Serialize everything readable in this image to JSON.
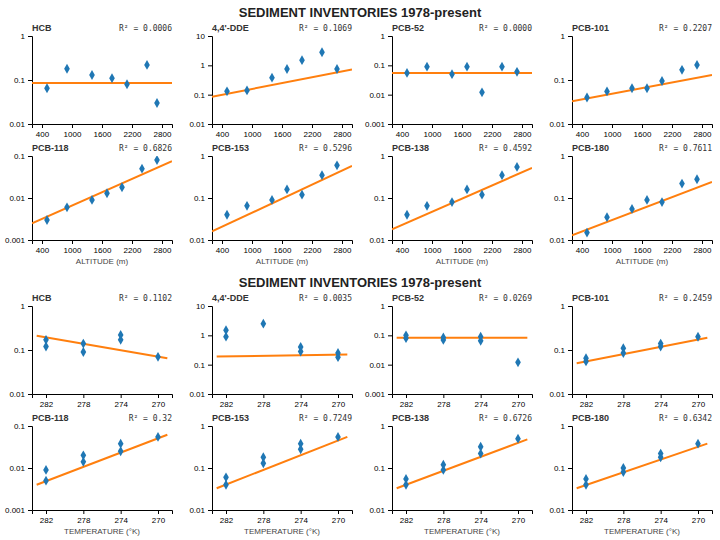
{
  "title": "SEDIMENT INVENTORIES 1978-present",
  "chart_data": [
    {
      "type": "scatter",
      "title": "HCB",
      "annotations": [
        "R² = 0.0006"
      ],
      "log": "y",
      "xlim": [
        200,
        3000
      ],
      "xticks": [
        400,
        1000,
        1600,
        2200,
        2800
      ],
      "ylim": [
        0.01,
        1
      ],
      "yticks": [
        0.01,
        0.1,
        1
      ],
      "series": [
        {
          "type": "scatter",
          "marker": "diamond",
          "x": [
            500,
            900,
            1400,
            1800,
            2100,
            2500,
            2700
          ],
          "values": [
            0.065,
            0.18,
            0.13,
            0.11,
            0.08,
            0.22,
            0.03
          ]
        },
        {
          "type": "line",
          "x": [
            200,
            3000
          ],
          "values": [
            0.085,
            0.085
          ]
        }
      ]
    },
    {
      "type": "scatter",
      "title": "4,4'-DDE",
      "annotations": [
        "R² = 0.1069"
      ],
      "log": "y",
      "xlim": [
        200,
        3000
      ],
      "xticks": [
        400,
        1000,
        1600,
        2200,
        2800
      ],
      "ylim": [
        0.01,
        10
      ],
      "yticks": [
        0.01,
        0.1,
        1,
        10
      ],
      "series": [
        {
          "type": "scatter",
          "marker": "diamond",
          "x": [
            500,
            900,
            1400,
            1700,
            2000,
            2400,
            2700
          ],
          "values": [
            0.13,
            0.14,
            0.38,
            0.75,
            1.5,
            2.8,
            0.75
          ]
        },
        {
          "type": "line",
          "x": [
            200,
            3000
          ],
          "values": [
            0.085,
            0.72
          ]
        }
      ]
    },
    {
      "type": "scatter",
      "title": "PCB-52",
      "annotations": [
        "R² = 0.0000"
      ],
      "log": "y",
      "xlim": [
        200,
        3000
      ],
      "xticks": [
        400,
        1000,
        1600,
        2200,
        2800
      ],
      "ylim": [
        0.001,
        1
      ],
      "yticks": [
        0.001,
        0.01,
        0.1,
        1
      ],
      "series": [
        {
          "type": "scatter",
          "marker": "diamond",
          "x": [
            500,
            900,
            1400,
            1700,
            2000,
            2400,
            2700
          ],
          "values": [
            0.055,
            0.09,
            0.05,
            0.09,
            0.012,
            0.09,
            0.06
          ]
        },
        {
          "type": "line",
          "x": [
            200,
            3000
          ],
          "values": [
            0.055,
            0.055
          ]
        }
      ]
    },
    {
      "type": "scatter",
      "title": "PCB-101",
      "annotations": [
        "R² = 0.2207"
      ],
      "log": "y",
      "xlim": [
        200,
        3000
      ],
      "xticks": [
        400,
        1000,
        1600,
        2200,
        2800
      ],
      "ylim": [
        0.01,
        1
      ],
      "yticks": [
        0.01,
        0.1,
        1
      ],
      "series": [
        {
          "type": "scatter",
          "marker": "diamond",
          "x": [
            500,
            900,
            1400,
            1700,
            2000,
            2400,
            2700
          ],
          "values": [
            0.04,
            0.055,
            0.065,
            0.065,
            0.095,
            0.17,
            0.22
          ]
        },
        {
          "type": "line",
          "x": [
            200,
            3000
          ],
          "values": [
            0.033,
            0.13
          ]
        }
      ]
    },
    {
      "type": "scatter",
      "title": "PCB-118",
      "annotations": [
        "R² = 0.6826"
      ],
      "log": "y",
      "x_label": "ALTITUDE (m)",
      "xlim": [
        200,
        3000
      ],
      "xticks": [
        400,
        1000,
        1600,
        2200,
        2800
      ],
      "ylim": [
        0.001,
        0.1
      ],
      "yticks": [
        0.001,
        0.01,
        0.1
      ],
      "series": [
        {
          "type": "scatter",
          "marker": "diamond",
          "x": [
            500,
            900,
            1400,
            1700,
            2000,
            2400,
            2700
          ],
          "values": [
            0.003,
            0.006,
            0.009,
            0.013,
            0.018,
            0.05,
            0.08
          ]
        },
        {
          "type": "line",
          "x": [
            200,
            3000
          ],
          "values": [
            0.0025,
            0.075
          ]
        }
      ]
    },
    {
      "type": "scatter",
      "title": "PCB-153",
      "annotations": [
        "R² = 0.5296"
      ],
      "log": "y",
      "x_label": "ALTITUDE (m)",
      "xlim": [
        200,
        3000
      ],
      "xticks": [
        400,
        1000,
        1600,
        2200,
        2800
      ],
      "ylim": [
        0.01,
        1
      ],
      "yticks": [
        0.01,
        0.1,
        1
      ],
      "series": [
        {
          "type": "scatter",
          "marker": "diamond",
          "x": [
            500,
            900,
            1400,
            1700,
            2000,
            2400,
            2700
          ],
          "values": [
            0.04,
            0.065,
            0.09,
            0.16,
            0.12,
            0.35,
            0.6
          ]
        },
        {
          "type": "line",
          "x": [
            200,
            3000
          ],
          "values": [
            0.016,
            0.58
          ]
        }
      ]
    },
    {
      "type": "scatter",
      "title": "PCB-138",
      "annotations": [
        "R² = 0.4592"
      ],
      "log": "y",
      "x_label": "ALTITUDE (m)",
      "xlim": [
        200,
        3000
      ],
      "xticks": [
        400,
        1000,
        1600,
        2200,
        2800
      ],
      "ylim": [
        0.01,
        1
      ],
      "yticks": [
        0.01,
        0.1,
        1
      ],
      "series": [
        {
          "type": "scatter",
          "marker": "diamond",
          "x": [
            500,
            900,
            1400,
            1700,
            2000,
            2400,
            2700
          ],
          "values": [
            0.04,
            0.065,
            0.08,
            0.16,
            0.12,
            0.35,
            0.55
          ]
        },
        {
          "type": "line",
          "x": [
            200,
            3000
          ],
          "values": [
            0.018,
            0.52
          ]
        }
      ]
    },
    {
      "type": "scatter",
      "title": "PCB-180",
      "annotations": [
        "R² = 0.7611"
      ],
      "log": "y",
      "x_label": "ALTITUDE (m)",
      "xlim": [
        200,
        3000
      ],
      "xticks": [
        400,
        1000,
        1600,
        2200,
        2800
      ],
      "ylim": [
        0.01,
        1
      ],
      "yticks": [
        0.01,
        0.1,
        1
      ],
      "series": [
        {
          "type": "scatter",
          "marker": "diamond",
          "x": [
            500,
            900,
            1400,
            1700,
            2000,
            2400,
            2700
          ],
          "values": [
            0.015,
            0.035,
            0.055,
            0.09,
            0.08,
            0.22,
            0.28
          ]
        },
        {
          "type": "line",
          "x": [
            200,
            3000
          ],
          "values": [
            0.013,
            0.24
          ]
        }
      ]
    },
    {
      "type": "scatter",
      "title": "HCB",
      "annotations": [
        "R² = 0.1102"
      ],
      "log": "y",
      "xlim": [
        283.5,
        268.5
      ],
      "xticks": [
        282,
        278,
        274,
        270
      ],
      "ylim": [
        0.01,
        1
      ],
      "yticks": [
        0.01,
        0.1,
        1
      ],
      "series": [
        {
          "type": "scatter",
          "marker": "diamond",
          "x": [
            282,
            282,
            278,
            278,
            274,
            274,
            270
          ],
          "values": [
            0.12,
            0.17,
            0.14,
            0.09,
            0.22,
            0.17,
            0.07
          ]
        },
        {
          "type": "line",
          "x": [
            283,
            269
          ],
          "values": [
            0.21,
            0.065
          ]
        }
      ]
    },
    {
      "type": "scatter",
      "title": "4,4'-DDE",
      "annotations": [
        "R² = 0.0035"
      ],
      "log": "y",
      "xlim": [
        283.5,
        268.5
      ],
      "xticks": [
        282,
        278,
        274,
        270
      ],
      "ylim": [
        0.01,
        10
      ],
      "yticks": [
        0.01,
        0.1,
        1,
        10
      ],
      "series": [
        {
          "type": "scatter",
          "marker": "diamond",
          "x": [
            282,
            282,
            278,
            274,
            274,
            270,
            270
          ],
          "values": [
            0.9,
            1.5,
            2.5,
            0.28,
            0.4,
            0.18,
            0.25
          ]
        },
        {
          "type": "line",
          "x": [
            283,
            269
          ],
          "values": [
            0.19,
            0.22
          ]
        }
      ]
    },
    {
      "type": "scatter",
      "title": "PCB-52",
      "annotations": [
        "R² = 0.0269"
      ],
      "log": "y",
      "xlim": [
        283.5,
        268.5
      ],
      "xticks": [
        282,
        278,
        274,
        270
      ],
      "ylim": [
        0.001,
        1
      ],
      "yticks": [
        0.001,
        0.01,
        0.1,
        1
      ],
      "series": [
        {
          "type": "scatter",
          "marker": "diamond",
          "x": [
            282,
            282,
            278,
            278,
            274,
            274,
            270
          ],
          "values": [
            0.08,
            0.1,
            0.07,
            0.085,
            0.065,
            0.09,
            0.012
          ]
        },
        {
          "type": "line",
          "x": [
            283,
            269
          ],
          "values": [
            0.082,
            0.082
          ]
        }
      ]
    },
    {
      "type": "scatter",
      "title": "PCB-101",
      "annotations": [
        "R² = 0.2459"
      ],
      "log": "y",
      "xlim": [
        283.5,
        268.5
      ],
      "xticks": [
        282,
        278,
        274,
        270
      ],
      "ylim": [
        0.01,
        1
      ],
      "yticks": [
        0.01,
        0.1,
        1
      ],
      "series": [
        {
          "type": "scatter",
          "marker": "diamond",
          "x": [
            282,
            282,
            278,
            278,
            274,
            274,
            270
          ],
          "values": [
            0.055,
            0.065,
            0.085,
            0.11,
            0.12,
            0.14,
            0.2
          ]
        },
        {
          "type": "line",
          "x": [
            283,
            269
          ],
          "values": [
            0.05,
            0.19
          ]
        }
      ]
    },
    {
      "type": "scatter",
      "title": "PCB-118",
      "annotations": [
        "R² = 0.32"
      ],
      "log": "y",
      "x_label": "TEMPERATURE (°K)",
      "xlim": [
        283.5,
        268.5
      ],
      "xticks": [
        282,
        278,
        274,
        270
      ],
      "ylim": [
        0.001,
        0.1
      ],
      "yticks": [
        0.001,
        0.01,
        0.1
      ],
      "series": [
        {
          "type": "scatter",
          "marker": "diamond",
          "x": [
            282,
            282,
            278,
            278,
            274,
            274,
            270
          ],
          "values": [
            0.005,
            0.009,
            0.014,
            0.02,
            0.025,
            0.038,
            0.055
          ]
        },
        {
          "type": "line",
          "x": [
            283,
            269
          ],
          "values": [
            0.004,
            0.062
          ]
        }
      ]
    },
    {
      "type": "scatter",
      "title": "PCB-153",
      "annotations": [
        "R² = 0.7249"
      ],
      "log": "y",
      "x_label": "TEMPERATURE (°K)",
      "xlim": [
        283.5,
        268.5
      ],
      "xticks": [
        282,
        278,
        274,
        270
      ],
      "ylim": [
        0.01,
        1
      ],
      "yticks": [
        0.01,
        0.1,
        1
      ],
      "series": [
        {
          "type": "scatter",
          "marker": "diamond",
          "x": [
            282,
            282,
            278,
            278,
            274,
            274,
            270
          ],
          "values": [
            0.04,
            0.06,
            0.13,
            0.18,
            0.28,
            0.38,
            0.55
          ]
        },
        {
          "type": "line",
          "x": [
            283,
            269
          ],
          "values": [
            0.033,
            0.55
          ]
        }
      ]
    },
    {
      "type": "scatter",
      "title": "PCB-138",
      "annotations": [
        "R² = 0.6726"
      ],
      "log": "y",
      "x_label": "TEMPERATURE (°K)",
      "xlim": [
        283.5,
        268.5
      ],
      "xticks": [
        282,
        278,
        274,
        270
      ],
      "ylim": [
        0.01,
        1
      ],
      "yticks": [
        0.01,
        0.1,
        1
      ],
      "series": [
        {
          "type": "scatter",
          "marker": "diamond",
          "x": [
            282,
            282,
            278,
            278,
            274,
            274,
            270
          ],
          "values": [
            0.04,
            0.055,
            0.09,
            0.12,
            0.22,
            0.32,
            0.5
          ]
        },
        {
          "type": "line",
          "x": [
            283,
            269
          ],
          "values": [
            0.033,
            0.48
          ]
        }
      ]
    },
    {
      "type": "scatter",
      "title": "PCB-180",
      "annotations": [
        "R² = 0.6342"
      ],
      "log": "y",
      "x_label": "TEMPERATURE (°K)",
      "xlim": [
        283.5,
        268.5
      ],
      "xticks": [
        282,
        278,
        274,
        270
      ],
      "ylim": [
        0.01,
        1
      ],
      "yticks": [
        0.01,
        0.1,
        1
      ],
      "series": [
        {
          "type": "scatter",
          "marker": "diamond",
          "x": [
            282,
            282,
            278,
            278,
            274,
            274,
            270
          ],
          "values": [
            0.04,
            0.055,
            0.08,
            0.1,
            0.18,
            0.22,
            0.38
          ]
        },
        {
          "type": "line",
          "x": [
            283,
            269
          ],
          "values": [
            0.033,
            0.38
          ]
        }
      ]
    }
  ]
}
